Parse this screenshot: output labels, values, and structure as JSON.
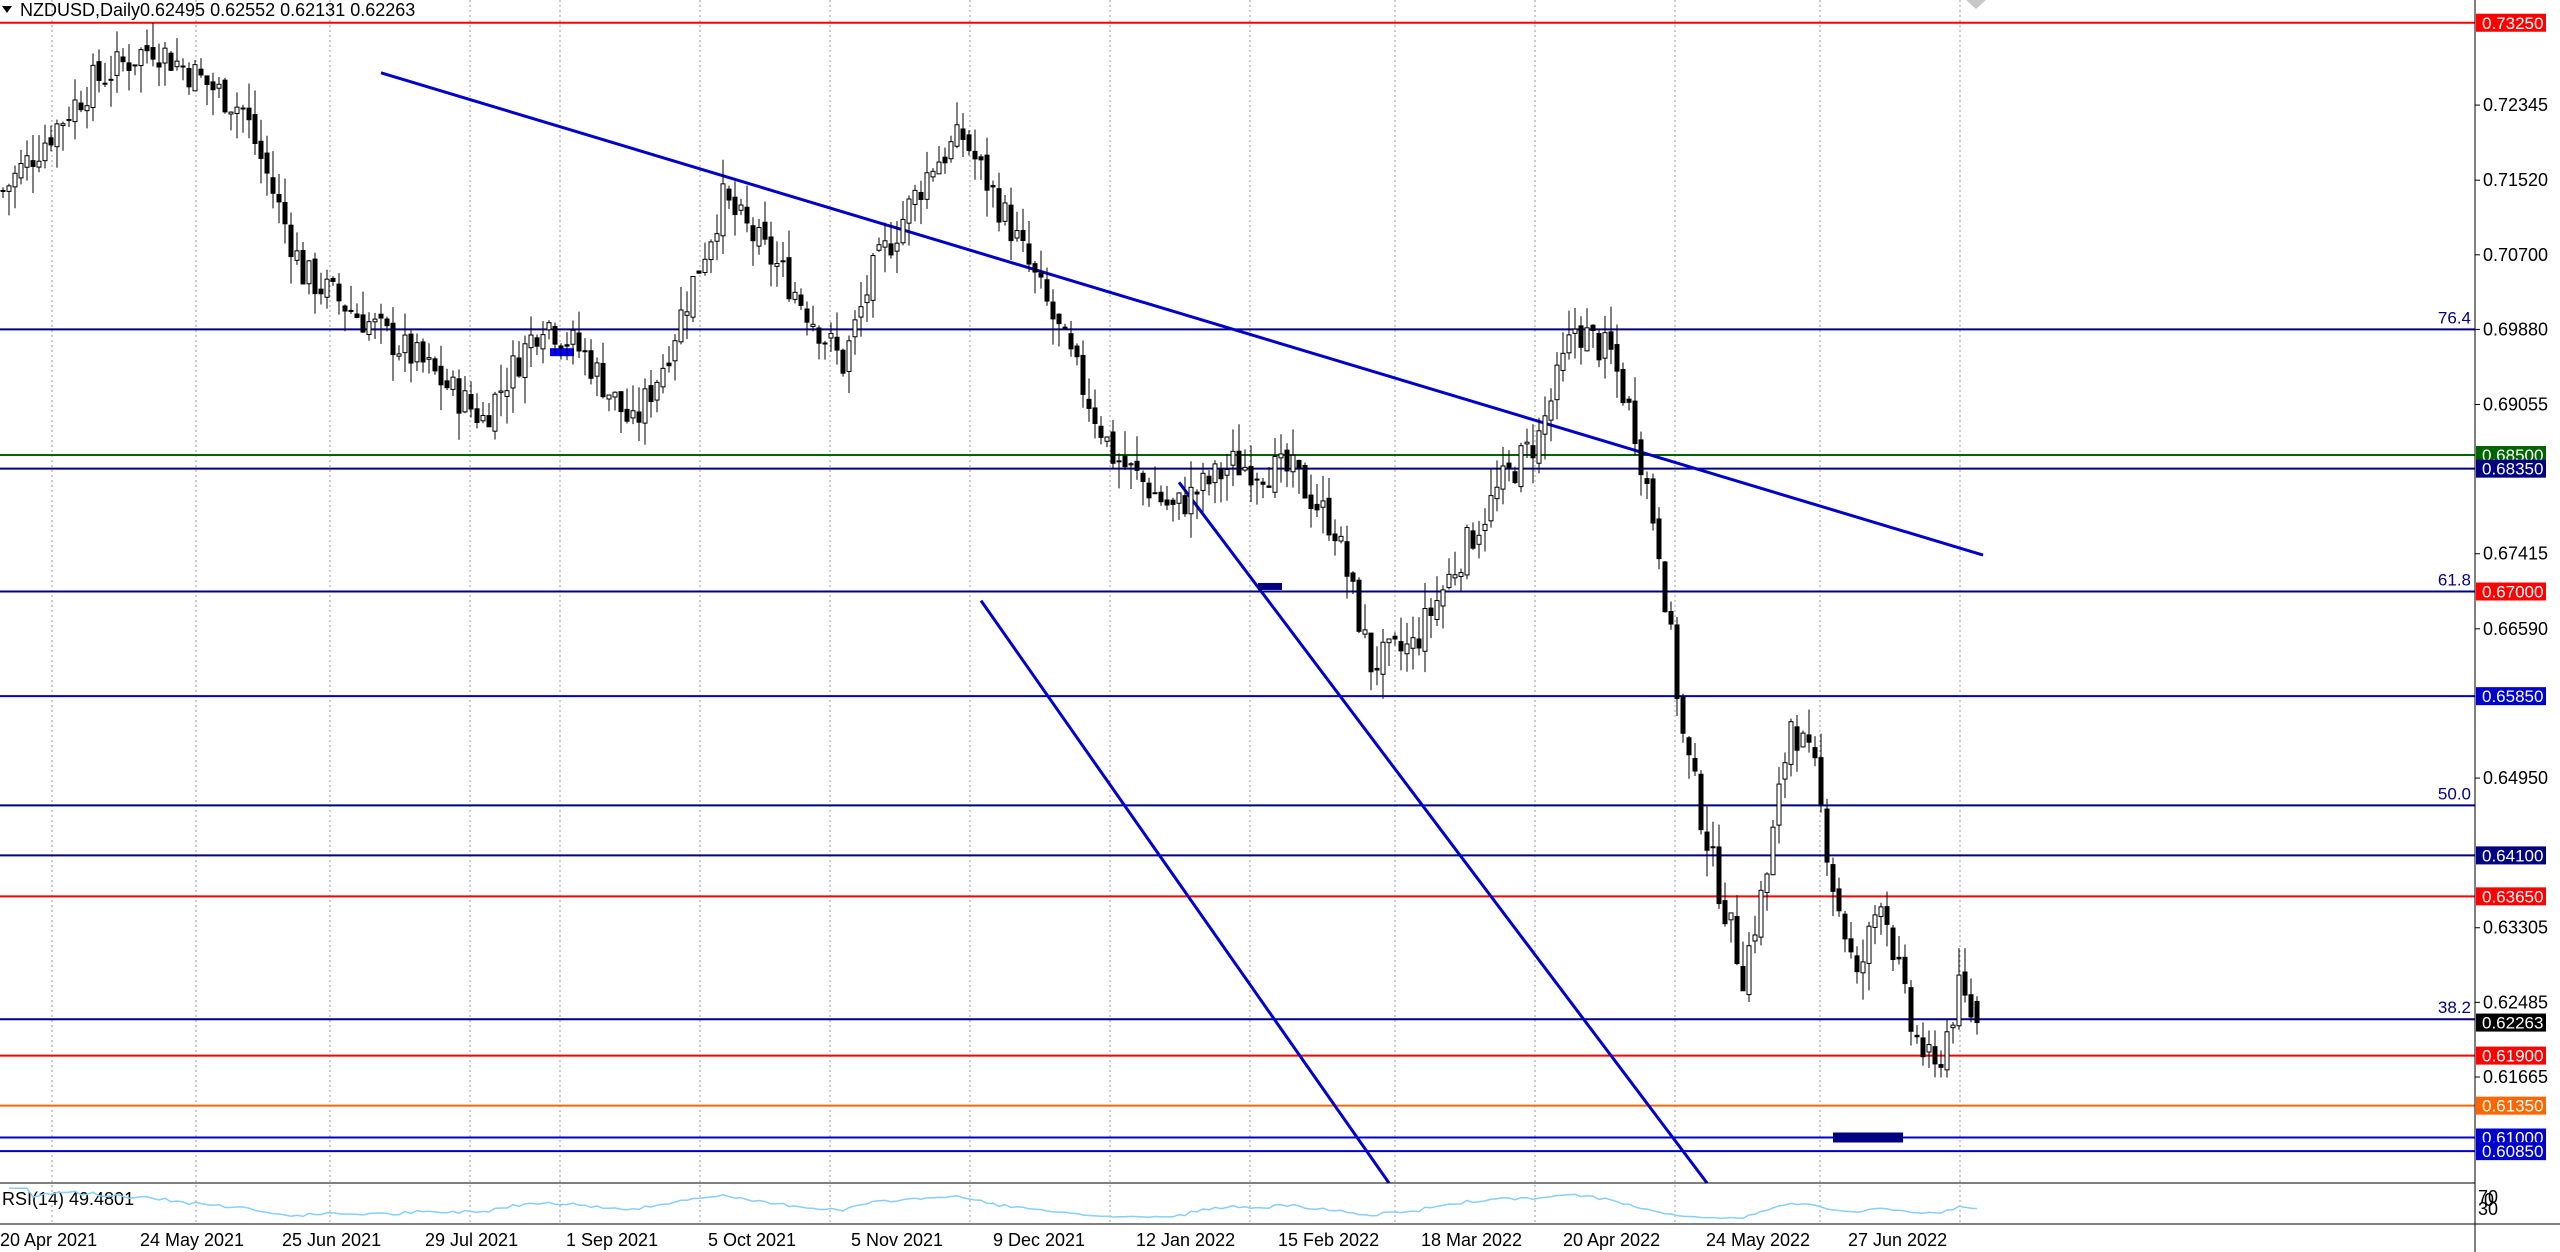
{
  "header": {
    "symbol": "NZDUSD,Daily",
    "ohlc": "0.62495 0.62552 0.62131 0.62263"
  },
  "indicator": {
    "label": "RSI(14) 49.4801",
    "scale_labels": [
      "70",
      "30",
      "0"
    ]
  },
  "chart_data": {
    "type": "candlestick",
    "symbol": "NZDUSD",
    "timeframe": "Daily",
    "ohlc_last": {
      "open": 0.62495,
      "high": 0.62552,
      "low": 0.62131,
      "close": 0.62263
    },
    "ylim": [
      0.605,
      0.735
    ],
    "y_ticks": [
      "0.72345",
      "0.71520",
      "0.70700",
      "0.69880",
      "0.69055",
      "0.67415",
      "0.66590",
      "0.64950",
      "0.63305",
      "0.62485",
      "0.61665"
    ],
    "x_labels": [
      "20 Apr 2021",
      "24 May 2021",
      "25 Jun 2021",
      "29 Jul 2021",
      "1 Sep 2021",
      "5 Oct 2021",
      "5 Nov 2021",
      "9 Dec 2021",
      "12 Jan 2022",
      "15 Feb 2022",
      "18 Mar 2022",
      "20 Apr 2022",
      "24 May 2022",
      "27 Jun 2022"
    ],
    "bars_total": 330,
    "price_anchors": [
      [
        0,
        0.714
      ],
      [
        15,
        0.726
      ],
      [
        25,
        0.73
      ],
      [
        40,
        0.723
      ],
      [
        50,
        0.705
      ],
      [
        60,
        0.7
      ],
      [
        70,
        0.695
      ],
      [
        80,
        0.689
      ],
      [
        90,
        0.7
      ],
      [
        97,
        0.696
      ],
      [
        105,
        0.688
      ],
      [
        110,
        0.695
      ],
      [
        120,
        0.713
      ],
      [
        130,
        0.705
      ],
      [
        140,
        0.695
      ],
      [
        145,
        0.705
      ],
      [
        155,
        0.717
      ],
      [
        160,
        0.72
      ],
      [
        168,
        0.71
      ],
      [
        175,
        0.7
      ],
      [
        185,
        0.685
      ],
      [
        195,
        0.679
      ],
      [
        205,
        0.684
      ],
      [
        215,
        0.683
      ],
      [
        222,
        0.677
      ],
      [
        228,
        0.662
      ],
      [
        235,
        0.664
      ],
      [
        243,
        0.674
      ],
      [
        250,
        0.682
      ],
      [
        256,
        0.687
      ],
      [
        262,
        0.699
      ],
      [
        268,
        0.696
      ],
      [
        272,
        0.688
      ],
      [
        276,
        0.675
      ],
      [
        280,
        0.654
      ],
      [
        285,
        0.64
      ],
      [
        290,
        0.628
      ],
      [
        294,
        0.639
      ],
      [
        298,
        0.656
      ],
      [
        302,
        0.65
      ],
      [
        305,
        0.638
      ],
      [
        309,
        0.627
      ],
      [
        313,
        0.637
      ],
      [
        318,
        0.622
      ],
      [
        322,
        0.617
      ],
      [
        326,
        0.626
      ],
      [
        329,
        0.6226
      ]
    ],
    "levels": [
      {
        "price": 0.7325,
        "color": "#ff0000",
        "tag": "0.73250",
        "tag_color": "#ff0000"
      },
      {
        "price": 0.6988,
        "color": "#000080",
        "fib": "76.4"
      },
      {
        "price": 0.685,
        "color": "#006400",
        "tag": "0.68500",
        "tag_color": "#006400"
      },
      {
        "price": 0.6835,
        "color": "#000080",
        "tag": "0.68350",
        "tag_color": "#000080"
      },
      {
        "price": 0.67,
        "color": "#000080",
        "fib": "61.8",
        "tag": "0.67000",
        "tag_color": "#ff0000"
      },
      {
        "price": 0.6585,
        "color": "#0000cd",
        "tag": "0.65850",
        "tag_color": "#0000cd"
      },
      {
        "price": 0.6465,
        "color": "#000080",
        "fib": "50.0"
      },
      {
        "price": 0.641,
        "color": "#000080",
        "tag": "0.64100",
        "tag_color": "#000080"
      },
      {
        "price": 0.6365,
        "color": "#ff0000",
        "tag": "0.63650",
        "tag_color": "#ff0000"
      },
      {
        "price": 0.623,
        "color": "#000080",
        "fib": "38.2"
      },
      {
        "price": 0.619,
        "color": "#ff0000",
        "tag": "0.61900",
        "tag_color": "#ff0000"
      },
      {
        "price": 0.6135,
        "color": "#ff6600",
        "tag": "0.61350",
        "tag_color": "#ff6600"
      },
      {
        "price": 0.61,
        "color": "#0000cd",
        "tag": "0.61000",
        "tag_color": "#0000cd"
      },
      {
        "price": 0.6085,
        "color": "#0000cd",
        "tag": "0.60850",
        "tag_color": "#0000cd"
      }
    ],
    "current_price_tag": "0.62263",
    "trendlines": [
      {
        "from": [
          63,
          0.727
        ],
        "to": [
          330,
          0.674
        ],
        "color": "#0000cd"
      },
      {
        "from": [
          196,
          0.682
        ],
        "to": [
          284,
          0.605
        ],
        "color": "#0000cd"
      },
      {
        "from": [
          163,
          0.669
        ],
        "to": [
          231,
          0.605
        ],
        "color": "#0000cd"
      }
    ],
    "grid": true,
    "colors": {
      "candle_up": "#ffffff",
      "candle_down": "#000000",
      "rsi_line": "#87cefa"
    }
  }
}
